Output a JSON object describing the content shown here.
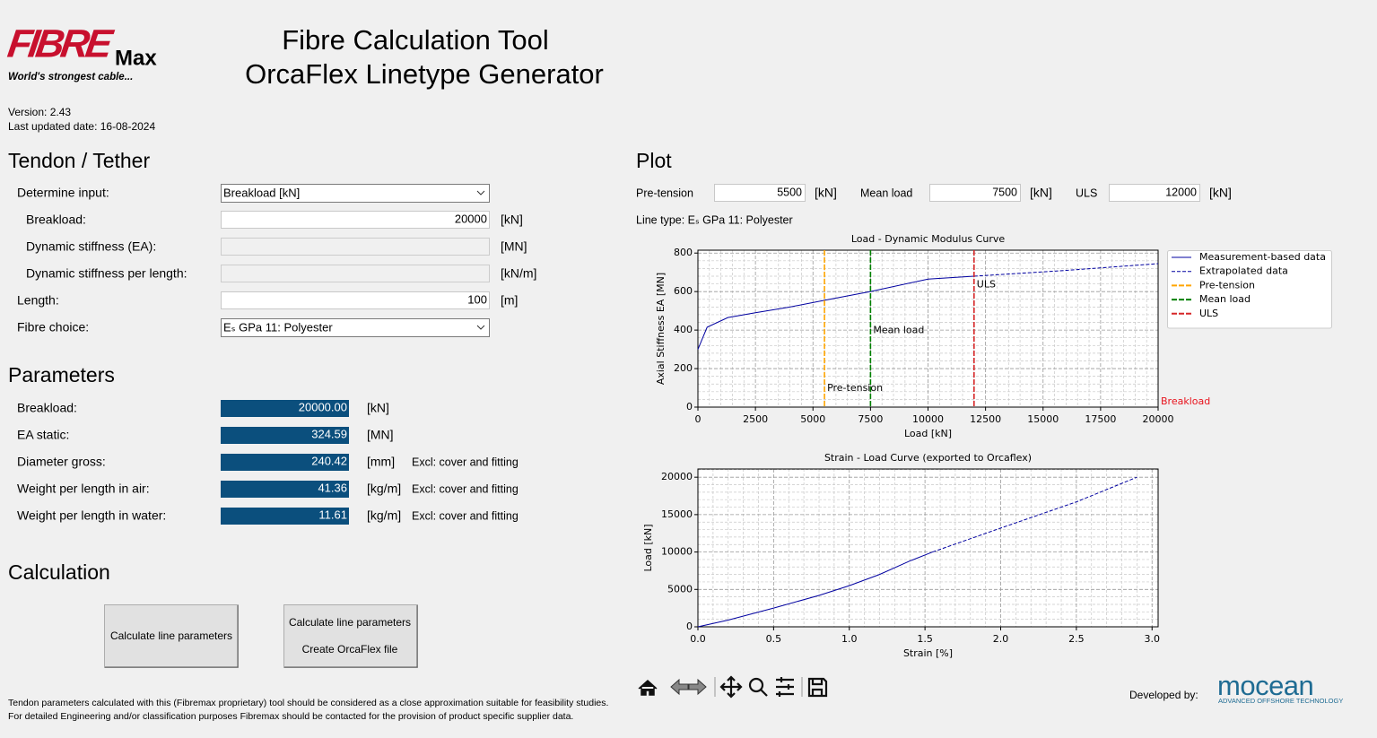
{
  "header": {
    "logo": {
      "brand": "FIBRE",
      "suffix": "Max",
      "tagline": "World's strongest cable..."
    },
    "title": [
      "Fibre Calculation Tool",
      "OrcaFlex Linetype Generator"
    ],
    "version": "Version: 2.43",
    "updated": "Last updated date: 16-08-2024"
  },
  "tendon": {
    "heading": "Tendon / Tether",
    "determine_input": {
      "label": "Determine input:",
      "selected": "Breakload [kN]"
    },
    "breakload": {
      "label": "Breakload:",
      "value": "20000",
      "unit": "[kN]"
    },
    "dynamic_stiffness": {
      "label": "Dynamic stiffness (EA):",
      "unit": "[MN]"
    },
    "dynamic_stiffness_per_length": {
      "label": "Dynamic stiffness per length:",
      "unit": "[kN/m]"
    },
    "length": {
      "label": "Length:",
      "value": "100",
      "unit": "[m]"
    },
    "fibre_choice": {
      "label": "Fibre choice:",
      "selected": "Eₛ GPa 11: Polyester"
    }
  },
  "parameters": {
    "heading": "Parameters",
    "rows": [
      {
        "label": "Breakload:",
        "value": "20000.00",
        "unit": "[kN]"
      },
      {
        "label": "EA static:",
        "value": "324.59",
        "unit": "[MN]"
      },
      {
        "label": "Diameter gross:",
        "value": "240.42",
        "unit": "[mm]",
        "note": "Excl: cover and fitting"
      },
      {
        "label": "Weight per length in air:",
        "value": "41.36",
        "unit": "[kg/m]",
        "note": "Excl: cover and fitting"
      },
      {
        "label": "Weight per length in water:",
        "value": "11.61",
        "unit": "[kg/m]",
        "note": "Excl: cover and fitting"
      }
    ]
  },
  "calculation": {
    "heading": "Calculation",
    "buttons": [
      [
        "Calculate line parameters"
      ],
      [
        "Calculate line parameters",
        "Create OrcaFlex file"
      ]
    ]
  },
  "plot": {
    "heading": "Plot",
    "inputs": [
      {
        "label": "Pre-tension",
        "value": "5500",
        "unit": "[kN]"
      },
      {
        "label": "Mean load",
        "value": "7500",
        "unit": "[kN]"
      },
      {
        "label": "ULS",
        "value": "12000",
        "unit": "[kN]"
      }
    ],
    "line_type": "Line type: Eₛ GPa 11: Polyester"
  },
  "chart_data": [
    {
      "type": "line",
      "title": "Load - Dynamic Modulus Curve",
      "x_label": "Load [kN]",
      "y_label": "Axial Stiffness EA [MN]",
      "xlim": [
        0,
        20000
      ],
      "ylim": [
        0,
        815
      ],
      "xticks": [
        0,
        2500,
        5000,
        7500,
        10000,
        12500,
        15000,
        17500,
        20000
      ],
      "yticks": [
        0,
        200,
        400,
        600,
        800
      ],
      "grid": true,
      "minor_grid_divisions": 5,
      "legend": "outside right",
      "series": [
        {
          "name": "Measurement-based data",
          "color": "#0000a0",
          "linestyle": "solid",
          "x": [
            0,
            400,
            1300,
            2500,
            4000,
            5500,
            7500,
            10000,
            12000
          ],
          "values": [
            300,
            415,
            465,
            490,
            520,
            555,
            600,
            665,
            680
          ]
        },
        {
          "name": "Extrapolated data",
          "color": "#0000a0",
          "linestyle": "dashed",
          "x": [
            12000,
            16000,
            20000
          ],
          "values": [
            680,
            710,
            745
          ]
        }
      ],
      "vlines": [
        {
          "name": "Pre-tension",
          "x": 5500,
          "color": "#ffa500"
        },
        {
          "name": "Mean load",
          "x": 7500,
          "color": "#008000"
        },
        {
          "name": "ULS",
          "x": 12000,
          "color": "#d62728"
        }
      ],
      "annotations": [
        {
          "text": "Breakload",
          "x": 20000,
          "color": "#e8141e"
        }
      ]
    },
    {
      "type": "line",
      "title": "Strain - Load Curve (exported to Orcaflex)",
      "x_label": "Strain [%]",
      "y_label": "Load [kN]",
      "xlim": [
        0,
        3.04
      ],
      "ylim": [
        0,
        21100
      ],
      "xticks": [
        {
          "value": 0,
          "label": "0.0"
        },
        0.5,
        {
          "value": 1,
          "label": "1.0"
        },
        1.5,
        {
          "value": 2,
          "label": "2.0"
        },
        2.5,
        {
          "value": 3,
          "label": "3.0"
        }
      ],
      "yticks": [
        0,
        5000,
        10000,
        15000,
        20000
      ],
      "grid": true,
      "minor_grid_divisions": 5,
      "series": [
        {
          "name": "Measurement-based data",
          "color": "#0000a0",
          "linestyle": "solid",
          "x": [
            0,
            0.2,
            0.5,
            0.8,
            1.0,
            1.2,
            1.4,
            1.55
          ],
          "values": [
            0,
            900,
            2500,
            4200,
            5500,
            7000,
            8800,
            10000
          ]
        },
        {
          "name": "Extrapolated data",
          "color": "#0000a0",
          "linestyle": "dashed",
          "x": [
            1.55,
            2.0,
            2.5,
            2.9
          ],
          "values": [
            10000,
            13200,
            16700,
            20000
          ]
        }
      ]
    }
  ],
  "footer": {
    "disclaimer": [
      "Tendon parameters calculated with this (Fibremax proprietary) tool should be considered as a close approximation suitable for feasibility studies.",
      "For detailed Engineering and/or classification purposes Fibremax should be contacted for the provision of product specific supplier data."
    ],
    "developed_by": "Developed by:",
    "developer": {
      "name": "mocean",
      "tagline": "ADVANCED OFFSHORE TECHNOLOGY"
    }
  }
}
